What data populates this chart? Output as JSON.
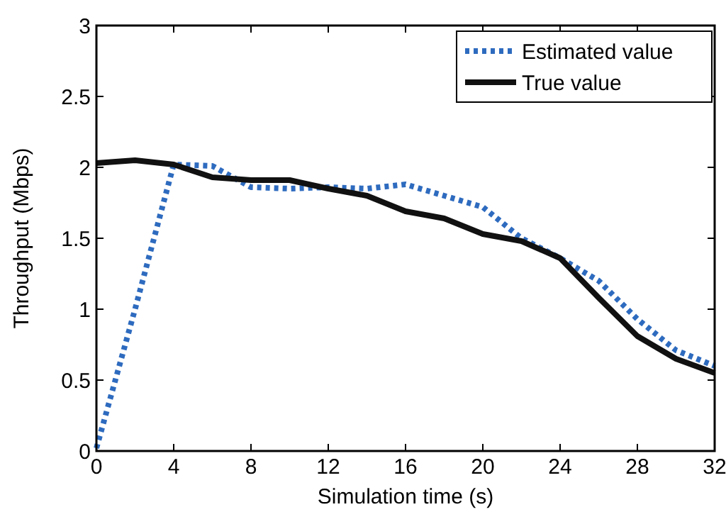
{
  "chart_data": {
    "type": "line",
    "xlabel": "Simulation time (s)",
    "ylabel": "Throughput (Mbps)",
    "x": [
      0,
      2,
      4,
      6,
      8,
      10,
      12,
      14,
      16,
      18,
      20,
      22,
      24,
      26,
      28,
      30,
      32
    ],
    "series": [
      {
        "name": "Estimated value",
        "color": "#2e6bbf",
        "line_style": "dotted",
        "values": [
          0.02,
          1.0,
          2.02,
          2.01,
          1.86,
          1.85,
          1.86,
          1.85,
          1.88,
          1.8,
          1.72,
          1.5,
          1.36,
          1.2,
          0.93,
          0.71,
          0.6
        ]
      },
      {
        "name": "True value",
        "color": "#111111",
        "line_style": "solid",
        "values": [
          2.03,
          2.05,
          2.02,
          1.93,
          1.91,
          1.91,
          1.85,
          1.8,
          1.69,
          1.64,
          1.53,
          1.48,
          1.36,
          1.08,
          0.81,
          0.65,
          0.55
        ]
      }
    ],
    "xlim": [
      0,
      32
    ],
    "xticks": [
      0,
      4,
      8,
      12,
      16,
      20,
      24,
      28,
      32
    ],
    "ylim": [
      0,
      3
    ],
    "yticks": [
      0,
      0.5,
      1,
      1.5,
      2,
      2.5,
      3
    ],
    "grid": false,
    "legend": "top right",
    "marker": "none"
  }
}
